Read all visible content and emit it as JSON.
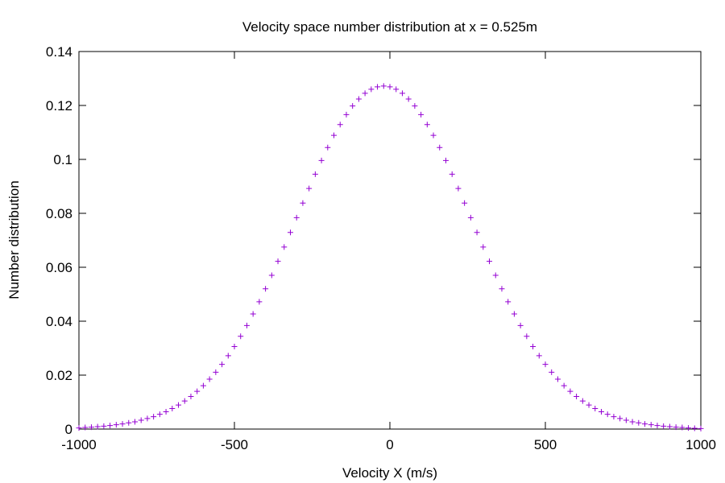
{
  "chart_data": {
    "type": "scatter",
    "title": "Velocity space number distribution at x = 0.525m",
    "xlabel": "Velocity X (m/s)",
    "ylabel": "Number distribution",
    "xlim": [
      -1000,
      1000
    ],
    "ylim": [
      0,
      0.14
    ],
    "xticks": [
      -1000,
      -500,
      0,
      500,
      1000
    ],
    "xtick_labels": [
      "-1000",
      "-500",
      "0",
      "500",
      "1000"
    ],
    "yticks": [
      0,
      0.02,
      0.04,
      0.06,
      0.08,
      0.1,
      0.12,
      0.14
    ],
    "ytick_labels": [
      "0",
      "0.02",
      "0.04",
      "0.06",
      "0.08",
      "0.1",
      "0.12",
      "0.14"
    ],
    "grid": false,
    "legend": "none",
    "marker": "plus",
    "series_color": "#9400d3",
    "series": [
      {
        "x": [
          -1000,
          -980,
          -960,
          -940,
          -920,
          -900,
          -880,
          -860,
          -840,
          -820,
          -800,
          -780,
          -760,
          -740,
          -720,
          -700,
          -680,
          -660,
          -640,
          -620,
          -600,
          -580,
          -560,
          -540,
          -520,
          -500,
          -480,
          -460,
          -440,
          -420,
          -400,
          -380,
          -360,
          -340,
          -320,
          -300,
          -280,
          -260,
          -240,
          -220,
          -200,
          -180,
          -160,
          -140,
          -120,
          -100,
          -80,
          -60,
          -40,
          -20,
          0,
          20,
          40,
          60,
          80,
          100,
          120,
          140,
          160,
          180,
          200,
          220,
          240,
          260,
          280,
          300,
          320,
          340,
          360,
          380,
          400,
          420,
          440,
          460,
          480,
          500,
          520,
          540,
          560,
          580,
          600,
          620,
          640,
          660,
          680,
          700,
          720,
          740,
          760,
          780,
          800,
          820,
          840,
          860,
          880,
          900,
          920,
          940,
          960,
          980,
          1000
        ],
        "y": [
          0.0004,
          0.0006,
          0.0007,
          0.0009,
          0.0011,
          0.0013,
          0.0016,
          0.0019,
          0.0023,
          0.0027,
          0.0033,
          0.0039,
          0.0046,
          0.0055,
          0.0064,
          0.0076,
          0.0089,
          0.0104,
          0.0121,
          0.014,
          0.0161,
          0.0185,
          0.0211,
          0.024,
          0.0272,
          0.0306,
          0.0344,
          0.0384,
          0.0427,
          0.0472,
          0.052,
          0.057,
          0.0622,
          0.0675,
          0.0729,
          0.0784,
          0.0838,
          0.0892,
          0.0945,
          0.0996,
          0.1044,
          0.1089,
          0.1129,
          0.1166,
          0.1198,
          0.1224,
          0.1245,
          0.126,
          0.1269,
          0.1272,
          0.1269,
          0.126,
          0.1245,
          0.1224,
          0.1198,
          0.1166,
          0.1129,
          0.1089,
          0.1044,
          0.0996,
          0.0945,
          0.0892,
          0.0838,
          0.0784,
          0.0729,
          0.0675,
          0.0622,
          0.057,
          0.052,
          0.0472,
          0.0427,
          0.0384,
          0.0344,
          0.0306,
          0.0272,
          0.024,
          0.0211,
          0.0185,
          0.0161,
          0.014,
          0.0121,
          0.0104,
          0.0089,
          0.0076,
          0.0064,
          0.0055,
          0.0046,
          0.0039,
          0.0033,
          0.0027,
          0.0023,
          0.0019,
          0.0016,
          0.0013,
          0.0011,
          0.0009,
          0.0007,
          0.0006,
          0.0004,
          0.0003,
          0.0002
        ]
      }
    ]
  }
}
